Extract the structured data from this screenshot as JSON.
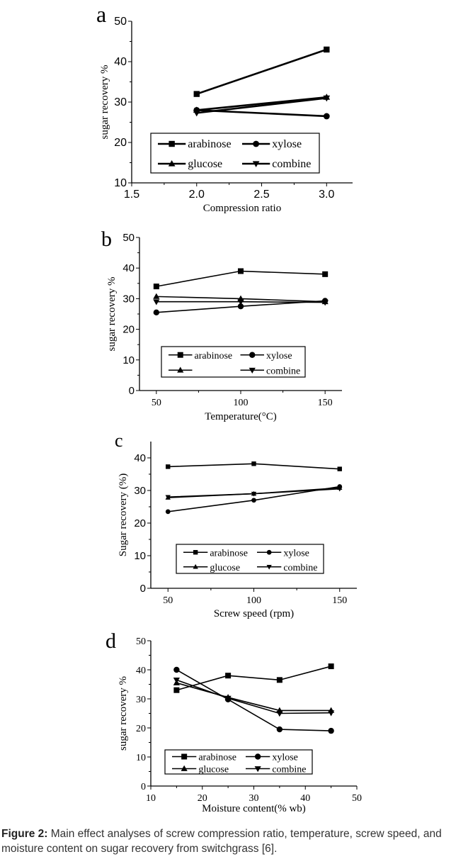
{
  "chart_data": [
    {
      "type": "line",
      "panel_label": "a",
      "xlabel": "Compression ratio",
      "ylabel": "sugar recovery %",
      "xlim": [
        1.5,
        3.2
      ],
      "ylim": [
        10,
        50
      ],
      "xticks": [
        1.5,
        2.0,
        2.5,
        3.0
      ],
      "xtick_labels": [
        "1.5",
        "2.0",
        "2.5",
        "3.0"
      ],
      "yticks": [
        10,
        20,
        30,
        40,
        50
      ],
      "ytick_labels": [
        "10",
        "20",
        "30",
        "40",
        "50"
      ],
      "x": [
        2.0,
        3.0
      ],
      "legend_position": "bottom-center",
      "series": [
        {
          "name": "arabinose",
          "marker": "square",
          "values": [
            32,
            43
          ]
        },
        {
          "name": "xylose",
          "marker": "circle",
          "values": [
            28,
            26.5
          ]
        },
        {
          "name": "glucose",
          "marker": "triangle-up",
          "values": [
            28,
            31.2
          ]
        },
        {
          "name": "combine",
          "marker": "triangle-down",
          "values": [
            27.3,
            31
          ]
        }
      ]
    },
    {
      "type": "line",
      "panel_label": "b",
      "xlabel": "Temperature(°C)",
      "ylabel": "sugar recovery %",
      "xlim": [
        40,
        160
      ],
      "ylim": [
        0,
        50
      ],
      "xticks": [
        50,
        100,
        150
      ],
      "xtick_labels": [
        "50",
        "100",
        "150"
      ],
      "yticks": [
        0,
        10,
        20,
        30,
        40,
        50
      ],
      "ytick_labels": [
        "0",
        "10",
        "20",
        "30",
        "40",
        "50"
      ],
      "x": [
        50,
        100,
        150
      ],
      "legend_position": "bottom-center",
      "series": [
        {
          "name": "arabinose",
          "marker": "square",
          "values": [
            34,
            39,
            38
          ]
        },
        {
          "name": "xylose",
          "marker": "circle",
          "values": [
            25.5,
            27.5,
            29.3
          ]
        },
        {
          "name": "",
          "marker": "triangle-up",
          "values": [
            30.7,
            30,
            29
          ]
        },
        {
          "name": "combine",
          "marker": "triangle-down",
          "values": [
            29,
            29,
            28.8
          ]
        }
      ]
    },
    {
      "type": "line",
      "panel_label": "c",
      "xlabel": "Screw speed (rpm)",
      "ylabel": "Sugar recovery (%)",
      "xlim": [
        40,
        160
      ],
      "ylim": [
        0,
        45
      ],
      "xticks": [
        50,
        100,
        150
      ],
      "xtick_labels": [
        "50",
        "100",
        "150"
      ],
      "yticks": [
        0,
        10,
        20,
        30,
        40
      ],
      "ytick_labels": [
        "0",
        "10",
        "20",
        "30",
        "40"
      ],
      "x": [
        50,
        100,
        150
      ],
      "legend_position": "bottom-center",
      "series": [
        {
          "name": "arabinose",
          "marker": "square",
          "values": [
            37.3,
            38.2,
            36.6
          ]
        },
        {
          "name": "xylose",
          "marker": "circle",
          "values": [
            23.5,
            27,
            31.2
          ]
        },
        {
          "name": "glucose",
          "marker": "triangle-up",
          "values": [
            27.8,
            29,
            30.8
          ]
        },
        {
          "name": "combine",
          "marker": "triangle-down",
          "values": [
            28,
            29,
            30.5
          ]
        }
      ]
    },
    {
      "type": "line",
      "panel_label": "d",
      "xlabel": "Moisture content(% wb)",
      "ylabel": "sugar recovery %",
      "xlim": [
        10,
        50
      ],
      "ylim": [
        0,
        50
      ],
      "xticks": [
        10,
        20,
        30,
        40,
        50
      ],
      "xtick_labels": [
        "10",
        "20",
        "30",
        "40",
        "50"
      ],
      "yticks": [
        0,
        10,
        20,
        30,
        40,
        50
      ],
      "ytick_labels": [
        "0",
        "10",
        "20",
        "30",
        "40",
        "50"
      ],
      "x": [
        15,
        25,
        35,
        45
      ],
      "legend_position": "bottom-center",
      "series": [
        {
          "name": "arabinose",
          "marker": "square",
          "values": [
            33,
            38,
            36.5,
            41.2
          ]
        },
        {
          "name": "xylose",
          "marker": "circle",
          "values": [
            40,
            29.8,
            19.5,
            19
          ]
        },
        {
          "name": "glucose",
          "marker": "triangle-up",
          "values": [
            35.5,
            30.5,
            26,
            26
          ]
        },
        {
          "name": "combine",
          "marker": "triangle-down",
          "values": [
            36.5,
            30.2,
            25,
            25.2
          ]
        }
      ]
    }
  ],
  "caption": {
    "label": "Figure 2:",
    "text": " Main effect analyses of screw compression ratio, temperature, screw speed, and moisture content on sugar recovery from switchgrass [6]."
  },
  "colors": {
    "ink": "#000000",
    "caption": "#333333"
  }
}
